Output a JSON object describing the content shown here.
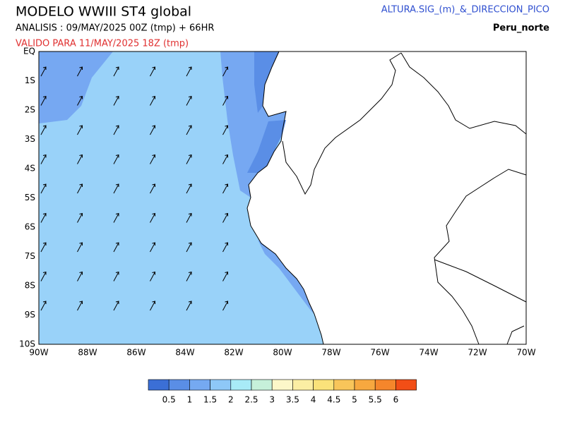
{
  "header": {
    "title": "MODELO WWIII ST4 global",
    "analysis": "ANALISIS : 09/MAY/2025 00Z  (tmp) + 66HR",
    "valid": "VALIDO PARA  11/MAY/2025 18Z  (tmp)",
    "variable": "ALTURA.SIG_(m)_&_DIRECCION_PICO",
    "region": "Peru_norte"
  },
  "map": {
    "xlabels": [
      "90W",
      "88W",
      "86W",
      "84W",
      "82W",
      "80W",
      "78W",
      "76W",
      "74W",
      "72W",
      "70W"
    ],
    "ylabels": [
      "EQ",
      "1S",
      "2S",
      "3S",
      "4S",
      "5S",
      "6S",
      "7S",
      "8S",
      "9S",
      "10S"
    ]
  },
  "colorbar": {
    "colors": [
      "#3b6fd6",
      "#5a8ee6",
      "#75a9f1",
      "#8ec8f7",
      "#a8ebf7",
      "#c6f0da",
      "#fcf7c9",
      "#fbeea3",
      "#fae27a",
      "#f8c55a",
      "#f7a83f",
      "#f5862b",
      "#f24e16"
    ],
    "labels": [
      0.5,
      1,
      1.5,
      2,
      2.5,
      3,
      3.5,
      4,
      4.5,
      5,
      5.5,
      6
    ]
  }
}
